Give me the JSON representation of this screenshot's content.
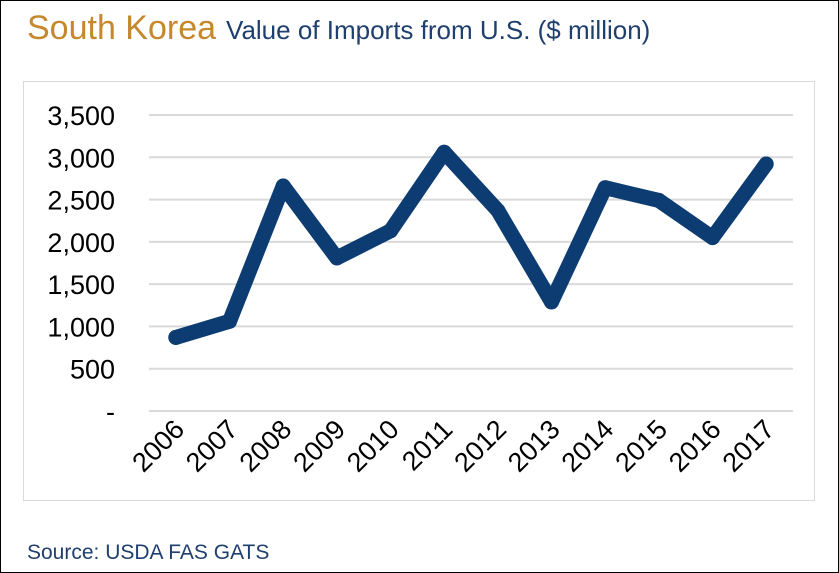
{
  "header": {
    "country": "South Korea",
    "subtitle": "Value of Imports from U.S. ($ million)"
  },
  "footer": {
    "source": "Source: USDA FAS GATS"
  },
  "colors": {
    "country": "#c5882d",
    "subtitle": "#1f3f6e",
    "line": "#0d3c73",
    "grid": "#d9d9d9",
    "tick_text": "#000000"
  },
  "chart_data": {
    "type": "line",
    "title": "South Korea Value of Imports from U.S. ($ million)",
    "categories": [
      "2006",
      "2007",
      "2008",
      "2009",
      "2010",
      "2011",
      "2012",
      "2013",
      "2014",
      "2015",
      "2016",
      "2017"
    ],
    "series": [
      {
        "values": [
          870,
          1060,
          2660,
          1810,
          2130,
          3060,
          2370,
          1290,
          2640,
          2490,
          2050,
          2920
        ]
      }
    ],
    "ylim": [
      0,
      3500
    ],
    "yticks": [
      0,
      500,
      1000,
      1500,
      2000,
      2500,
      3000,
      3500
    ],
    "ytick_labels": [
      "-",
      "500",
      "1,000",
      "1,500",
      "2,000",
      "2,500",
      "3,000",
      "3,500"
    ],
    "grid": true,
    "legend": "none"
  }
}
